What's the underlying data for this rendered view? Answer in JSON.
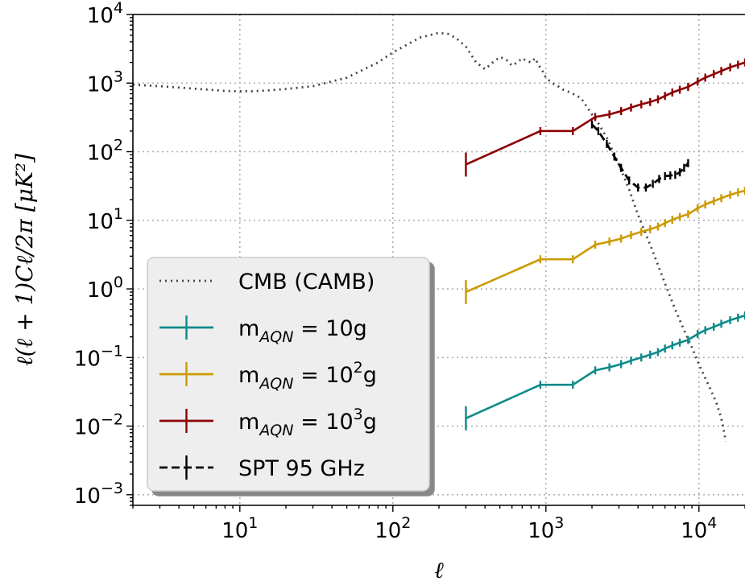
{
  "chart_data": {
    "type": "line",
    "xscale": "log",
    "yscale": "log",
    "xlim": [
      2,
      20000
    ],
    "ylim": [
      0.0007,
      10000
    ],
    "xlabel": "ℓ",
    "ylabel": "ℓ(ℓ + 1)Cℓ/2π [μK²]",
    "grid": true,
    "legend_position": "lower-left",
    "x_ticks": [
      {
        "value": 10,
        "base": "10",
        "exp": "1"
      },
      {
        "value": 100,
        "base": "10",
        "exp": "2"
      },
      {
        "value": 1000,
        "base": "10",
        "exp": "3"
      },
      {
        "value": 10000,
        "base": "10",
        "exp": "4"
      }
    ],
    "y_ticks": [
      {
        "value": 0.001,
        "base": "10",
        "exp": "−3"
      },
      {
        "value": 0.01,
        "base": "10",
        "exp": "−2"
      },
      {
        "value": 0.1,
        "base": "10",
        "exp": "−1"
      },
      {
        "value": 1,
        "base": "10",
        "exp": "0"
      },
      {
        "value": 10,
        "base": "10",
        "exp": "1"
      },
      {
        "value": 100,
        "base": "10",
        "exp": "2"
      },
      {
        "value": 1000,
        "base": "10",
        "exp": "3"
      },
      {
        "value": 10000,
        "base": "10",
        "exp": "4"
      }
    ],
    "series": [
      {
        "key": "cmb",
        "name": "CMB (CAMB)",
        "color": "#444444",
        "style": "dotted",
        "x": [
          2,
          3,
          5,
          8,
          10,
          12,
          15,
          20,
          30,
          50,
          80,
          100,
          150,
          200,
          230,
          260,
          300,
          350,
          400,
          450,
          500,
          550,
          600,
          650,
          700,
          750,
          800,
          850,
          900,
          950,
          1000,
          1100,
          1200,
          1300,
          1400,
          1500,
          1600,
          1700,
          2000,
          2200,
          2500,
          3000,
          3500,
          4000,
          5000,
          6000,
          7000,
          8000,
          9000,
          10000,
          11000,
          12000,
          13000,
          14000,
          15000
        ],
        "y": [
          950,
          900,
          830,
          770,
          760,
          760,
          780,
          820,
          900,
          1200,
          2000,
          2800,
          4600,
          5400,
          5200,
          4500,
          3400,
          2000,
          1600,
          2000,
          2400,
          2200,
          1800,
          2000,
          2300,
          2100,
          2000,
          2300,
          1800,
          1500,
          1200,
          1000,
          900,
          800,
          750,
          700,
          650,
          600,
          350,
          260,
          160,
          65,
          28,
          12,
          3.5,
          1.2,
          0.5,
          0.25,
          0.14,
          0.08,
          0.05,
          0.033,
          0.022,
          0.013,
          0.006
        ]
      },
      {
        "key": "m10",
        "name_base": "m",
        "name_sub": "AQN",
        "name_rest": " = 10g",
        "name_sup": "",
        "name_tail": "",
        "color": "#0e8a8a",
        "style": "solid",
        "x": [
          300,
          920,
          1500,
          2100,
          2600,
          3100,
          3600,
          4200,
          4800,
          5400,
          6000,
          6700,
          7500,
          8500,
          9800,
          11000,
          12500,
          14000,
          16000,
          18000,
          20000
        ],
        "y": [
          0.013,
          0.04,
          0.04,
          0.065,
          0.072,
          0.08,
          0.09,
          0.1,
          0.11,
          0.12,
          0.135,
          0.15,
          0.165,
          0.18,
          0.22,
          0.25,
          0.28,
          0.31,
          0.35,
          0.38,
          0.41
        ]
      },
      {
        "key": "m100",
        "name_base": "m",
        "name_sub": "AQN",
        "name_rest": " = 10",
        "name_sup": "2",
        "name_tail": "g",
        "color": "#cc9a00",
        "style": "solid",
        "x": [
          300,
          920,
          1500,
          2100,
          2600,
          3100,
          3600,
          4200,
          4800,
          5400,
          6000,
          6700,
          7500,
          8500,
          9800,
          11000,
          12500,
          14000,
          16000,
          18000,
          20000
        ],
        "y": [
          0.9,
          2.7,
          2.7,
          4.4,
          4.9,
          5.4,
          6.1,
          6.8,
          7.4,
          8.1,
          9.1,
          10.2,
          11.2,
          12.3,
          15,
          17,
          19,
          21,
          23.5,
          25.5,
          27
        ]
      },
      {
        "key": "m1000",
        "name_base": "m",
        "name_sub": "AQN",
        "name_rest": " = 10",
        "name_sup": "3",
        "name_tail": "g",
        "color": "#8b0000",
        "style": "solid",
        "x": [
          300,
          920,
          1500,
          2100,
          2600,
          3100,
          3600,
          4200,
          4800,
          5400,
          6000,
          6700,
          7500,
          8500,
          9800,
          11000,
          12500,
          14000,
          16000,
          18000,
          20000
        ],
        "y": [
          65,
          200,
          200,
          320,
          350,
          390,
          440,
          490,
          530,
          580,
          650,
          730,
          800,
          880,
          1050,
          1200,
          1350,
          1500,
          1700,
          1850,
          2000
        ]
      },
      {
        "key": "spt",
        "name": "SPT 95 GHz",
        "color": "#000000",
        "style": "dashed",
        "x": [
          2000,
          2200,
          2500,
          2800,
          3100,
          3500,
          4000,
          4500,
          5000,
          5500,
          6000,
          6500,
          7000,
          7500,
          8000,
          8500
        ],
        "y": [
          250,
          200,
          130,
          85,
          58,
          38,
          30,
          30,
          34,
          40,
          44,
          45,
          46,
          50,
          58,
          68
        ]
      }
    ]
  }
}
